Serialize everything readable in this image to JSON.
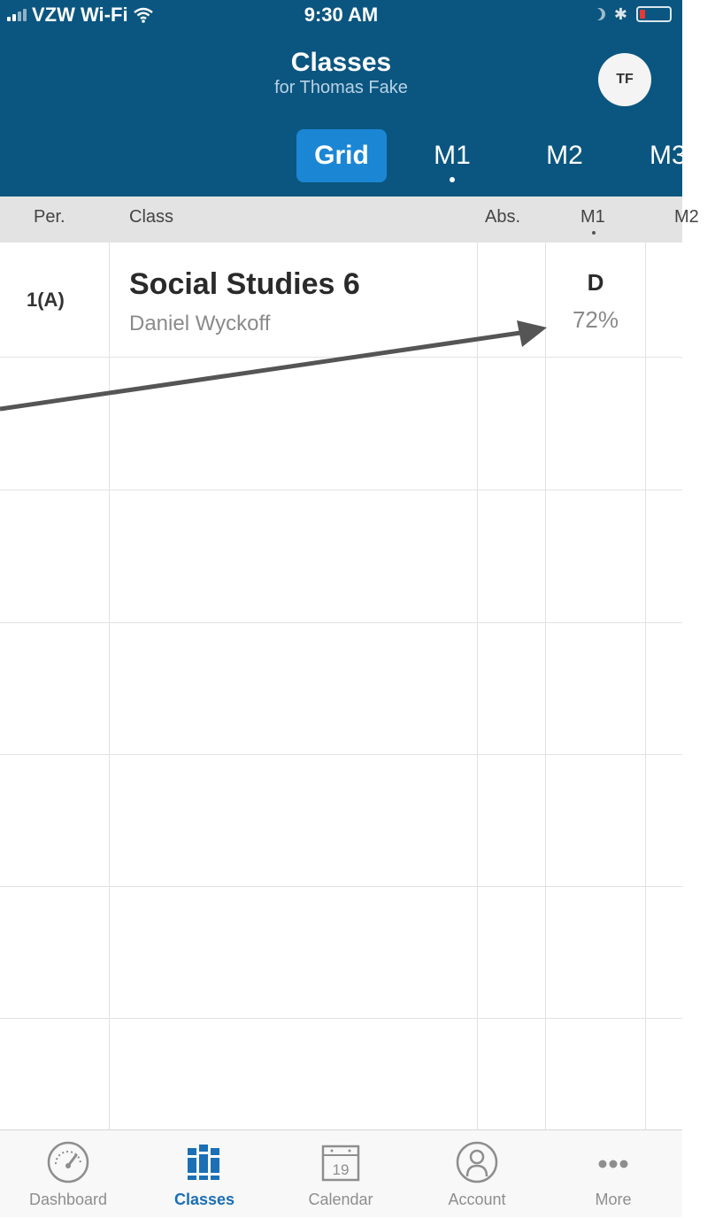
{
  "status_bar": {
    "carrier": "VZW Wi-Fi",
    "time": "9:30 AM"
  },
  "header": {
    "title": "Classes",
    "subtitle": "for Thomas Fake",
    "avatar_initials": "TF"
  },
  "tabs": [
    {
      "label": "Grid",
      "active": true
    },
    {
      "label": "M1",
      "current": true
    },
    {
      "label": "M2"
    },
    {
      "label": "M3"
    }
  ],
  "columns": {
    "period": "Per.",
    "class": "Class",
    "absences": "Abs.",
    "m1": "M1",
    "m2": "M2"
  },
  "rows": [
    {
      "period": "1(A)",
      "class_name": "Social Studies 6",
      "teacher": "Daniel Wyckoff",
      "absences": "",
      "m1_letter": "D",
      "m1_percent": "72%"
    }
  ],
  "tab_bar": {
    "items": [
      {
        "label": "Dashboard",
        "icon": "dashboard-icon"
      },
      {
        "label": "Classes",
        "icon": "classes-icon",
        "active": true
      },
      {
        "label": "Calendar",
        "icon": "calendar-icon",
        "calendar_day": "19"
      },
      {
        "label": "Account",
        "icon": "account-icon"
      },
      {
        "label": "More",
        "icon": "more-icon"
      }
    ]
  },
  "colors": {
    "header_bg": "#0b5680",
    "active_tab": "#1b86d4",
    "active_nav": "#1b6fb5"
  }
}
